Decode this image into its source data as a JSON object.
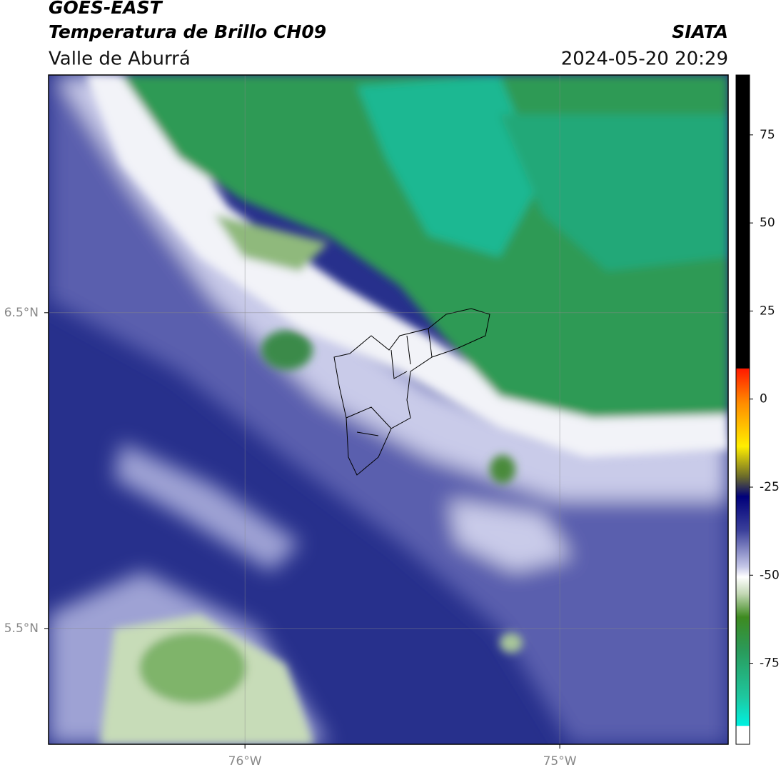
{
  "chart_data": {
    "type": "map",
    "title": "GOES-EAST",
    "subtitle": "Temperatura de Brillo CH09",
    "region": "Valle de Aburrá",
    "source": "SIATA",
    "datetime": "2024-05-20 20:29",
    "xlim": [
      -76.624,
      -74.465
    ],
    "ylim": [
      5.133,
      7.253
    ],
    "xticks": [
      {
        "value": -76,
        "label": "76°W"
      },
      {
        "value": -75,
        "label": "75°W"
      }
    ],
    "yticks": [
      {
        "value": 6.5,
        "label": "6.5°N"
      },
      {
        "value": 5.5,
        "label": "5.5°N"
      }
    ],
    "grid": true,
    "colorbar": {
      "lim": [
        -98,
        92
      ],
      "ticks": [
        75,
        50,
        25,
        0,
        -25,
        -50,
        -75
      ]
    }
  }
}
